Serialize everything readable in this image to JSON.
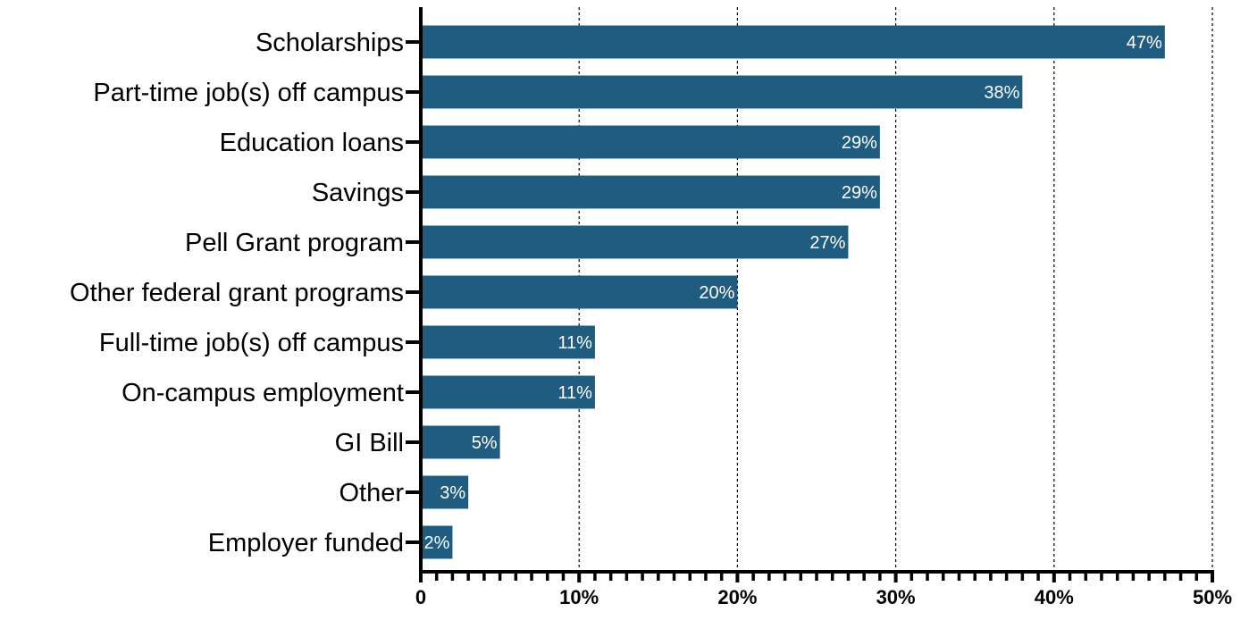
{
  "chart_data": {
    "type": "bar",
    "orientation": "horizontal",
    "categories": [
      "Scholarships",
      "Part-time job(s) off campus",
      "Education loans",
      "Savings",
      "Pell Grant program",
      "Other federal grant programs",
      "Full-time job(s) off campus",
      "On-campus employment",
      "GI Bill",
      "Other",
      "Employer funded"
    ],
    "values": [
      47,
      38,
      29,
      29,
      27,
      20,
      11,
      11,
      5,
      3,
      2
    ],
    "value_labels": [
      "47%",
      "38%",
      "29%",
      "29%",
      "27%",
      "20%",
      "11%",
      "11%",
      "5%",
      "3%",
      "2%"
    ],
    "title": "",
    "xlabel": "",
    "ylabel": "",
    "xlim": [
      0,
      50
    ],
    "x_ticks": [
      0,
      10,
      20,
      30,
      40,
      50
    ],
    "x_tick_labels": [
      "0",
      "10%",
      "20%",
      "30%",
      "40%",
      "50%"
    ],
    "x_minor_tick_step": 1,
    "grid": "vertical dashed at major ticks",
    "legend": "none",
    "colors": {
      "bar": "#1f5c80",
      "value_label": "#ffffff",
      "axis": "#000000",
      "grid": "#000000"
    }
  }
}
